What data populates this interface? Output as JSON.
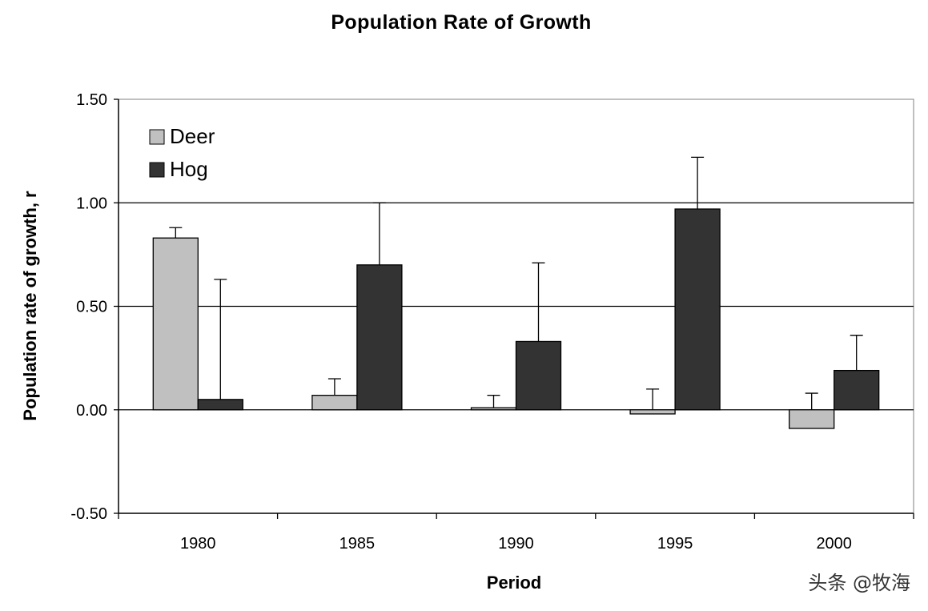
{
  "chart_data": {
    "type": "bar",
    "title": "Population Rate of Growth",
    "xlabel": "Period",
    "ylabel": "Population rate of growth, r",
    "categories": [
      "1980",
      "1985",
      "1990",
      "1995",
      "2000"
    ],
    "ylim": [
      -0.5,
      1.5
    ],
    "yticks": [
      -0.5,
      0.0,
      0.5,
      1.0,
      1.5
    ],
    "ytick_labels": [
      "-0.50",
      "0.00",
      "0.50",
      "1.00",
      "1.50"
    ],
    "gridlines": [
      0.0,
      0.5,
      1.0
    ],
    "legend_position": "top-left",
    "series": [
      {
        "name": "Deer",
        "color": "#c0c0c0",
        "values": [
          0.83,
          0.07,
          0.01,
          -0.02,
          -0.09
        ],
        "error_upper": [
          0.88,
          0.15,
          0.07,
          0.1,
          0.08
        ]
      },
      {
        "name": "Hog",
        "color": "#333333",
        "values": [
          0.05,
          0.7,
          0.33,
          0.97,
          0.19
        ],
        "error_upper": [
          0.63,
          1.0,
          0.71,
          1.22,
          0.36
        ]
      }
    ]
  },
  "watermark": "头条 @牧海"
}
